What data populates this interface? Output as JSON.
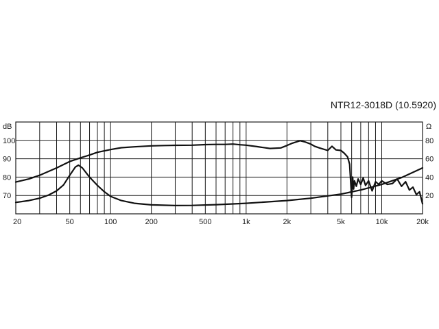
{
  "chart_data": {
    "type": "line",
    "title": "NTR12-3018D (10.5920)",
    "x_scale": "log",
    "xlim": [
      20,
      20000
    ],
    "x_ticks": [
      {
        "value": 20,
        "label": "20"
      },
      {
        "value": 50,
        "label": "50"
      },
      {
        "value": 100,
        "label": "100"
      },
      {
        "value": 200,
        "label": "200"
      },
      {
        "value": 500,
        "label": "500"
      },
      {
        "value": 1000,
        "label": "1k"
      },
      {
        "value": 2000,
        "label": "2k"
      },
      {
        "value": 5000,
        "label": "5k"
      },
      {
        "value": 10000,
        "label": "10k"
      },
      {
        "value": 20000,
        "label": "20k"
      }
    ],
    "y_left": {
      "unit": "dB",
      "lim": [
        60,
        110
      ],
      "ticks": [
        {
          "value": 70,
          "label": "70"
        },
        {
          "value": 80,
          "label": "80"
        },
        {
          "value": 90,
          "label": "90"
        },
        {
          "value": 100,
          "label": "100"
        }
      ]
    },
    "y_right": {
      "unit": "Ω",
      "lim": [
        0,
        100
      ],
      "ticks": [
        {
          "value": 20,
          "label": "20"
        },
        {
          "value": 40,
          "label": "40"
        },
        {
          "value": 60,
          "label": "60"
        },
        {
          "value": 80,
          "label": "80"
        }
      ]
    },
    "grid": true,
    "line_color": "#111111",
    "series": [
      {
        "axis": "left",
        "x": [
          20,
          25,
          30,
          40,
          50,
          60,
          70,
          80,
          100,
          120,
          150,
          200,
          250,
          300,
          400,
          500,
          600,
          700,
          800,
          900,
          1000,
          1200,
          1500,
          1800,
          2000,
          2200,
          2500,
          2700,
          3000,
          3200,
          3500,
          4000,
          4300,
          4600,
          5000,
          5300,
          5600,
          5800,
          6000,
          6100,
          6200,
          6300,
          6500,
          6700,
          7000,
          7300,
          7600,
          8000,
          8500,
          9000,
          9500,
          10000,
          11000,
          12000,
          13000,
          14000,
          15000,
          16000,
          17000,
          18000,
          19000,
          20000
        ],
        "y": [
          77.3,
          79.0,
          81.0,
          85.0,
          88.5,
          90.5,
          92.0,
          93.5,
          95.0,
          96.0,
          96.5,
          97.0,
          97.2,
          97.3,
          97.4,
          97.7,
          97.8,
          97.8,
          98.0,
          97.6,
          97.4,
          96.6,
          95.6,
          95.9,
          97.2,
          98.5,
          99.8,
          99.2,
          98.0,
          96.8,
          95.8,
          94.5,
          96.8,
          94.8,
          94.5,
          93.0,
          91.0,
          87.0,
          69.0,
          80.0,
          73.5,
          78.0,
          75.0,
          79.0,
          76.0,
          79.5,
          75.5,
          78.0,
          72.5,
          77.5,
          76.0,
          78.0,
          76.0,
          76.5,
          79.0,
          75.0,
          77.5,
          73.0,
          74.5,
          70.5,
          72.0,
          65.5
        ]
      },
      {
        "axis": "right",
        "x": [
          20,
          25,
          30,
          35,
          40,
          45,
          50,
          55,
          58,
          62,
          70,
          80,
          90,
          100,
          120,
          150,
          200,
          300,
          400,
          600,
          1000,
          2000,
          3000,
          5000,
          7000,
          10000,
          14000,
          20000
        ],
        "y": [
          12.5,
          14.5,
          17.0,
          20.5,
          25.0,
          31.5,
          42.0,
          51.0,
          53.0,
          50.0,
          40.0,
          31.0,
          24.0,
          19.0,
          14.5,
          11.5,
          9.8,
          9.0,
          9.2,
          10.0,
          11.5,
          14.5,
          17.0,
          21.5,
          26.0,
          32.0,
          39.5,
          50.0
        ]
      }
    ]
  }
}
